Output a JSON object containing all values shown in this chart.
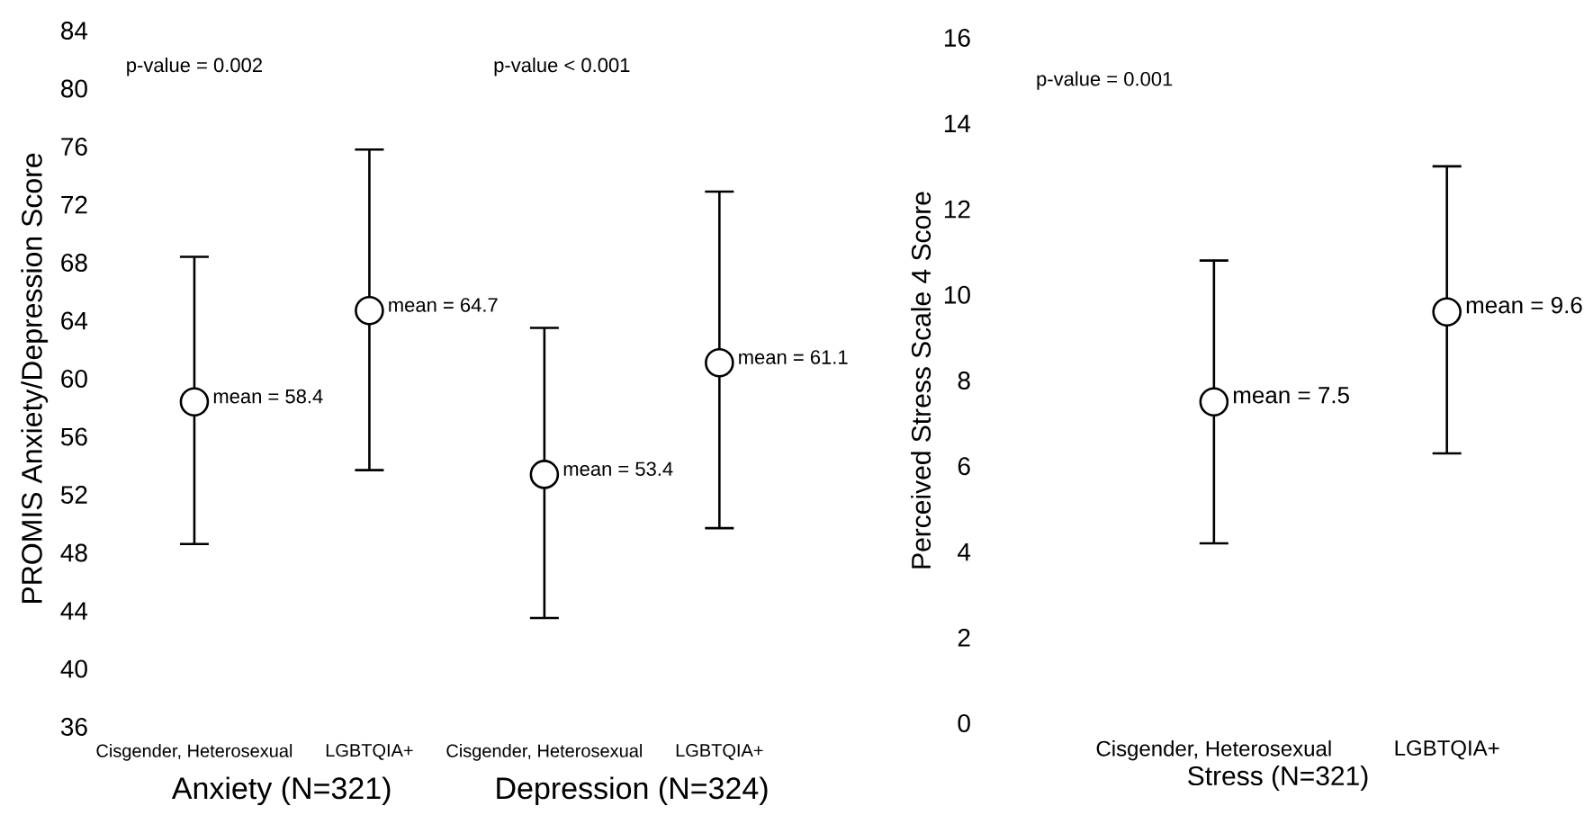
{
  "chart_data": [
    {
      "type": "scatter",
      "ylabel": "PROMIS Anxiety/Depression Score",
      "categories": [
        "Cisgender, Heterosexual",
        "LGBTQIA+",
        "Cisgender, Heterosexual",
        "LGBTQIA+"
      ],
      "values": [
        58.4,
        64.7,
        53.4,
        61.1
      ],
      "errors": [
        [
          48.6,
          68.4
        ],
        [
          53.7,
          75.8
        ],
        [
          43.5,
          63.5
        ],
        [
          49.7,
          72.9
        ]
      ],
      "value_labels": [
        "mean = 58.4",
        "mean = 64.7",
        "mean = 53.4",
        "mean = 61.1"
      ],
      "color": "#000000",
      "marker": "circle",
      "ylim": [
        36,
        84
      ],
      "yticks": [
        36,
        40,
        44,
        48,
        52,
        56,
        60,
        64,
        68,
        72,
        76,
        80,
        84
      ],
      "annotations": [
        "p-value = 0.002",
        "p-value < 0.001",
        "Anxiety (N=321)",
        "Depression (N=324)"
      ]
    },
    {
      "type": "scatter",
      "ylabel": "Perceived Stress Scale 4 Score",
      "xlabel": "Stress (N=321)",
      "categories": [
        "Cisgender, Heterosexual",
        "LGBTQIA+"
      ],
      "values": [
        7.5,
        9.6
      ],
      "errors": [
        [
          4.2,
          10.8
        ],
        [
          6.3,
          13.0
        ]
      ],
      "value_labels": [
        "mean = 7.5",
        "mean = 9.6"
      ],
      "color": "#000000",
      "marker": "circle",
      "ylim": [
        0,
        16
      ],
      "yticks": [
        0,
        2,
        4,
        6,
        8,
        10,
        12,
        14,
        16
      ],
      "annotations": [
        "p-value = 0.001"
      ]
    }
  ]
}
